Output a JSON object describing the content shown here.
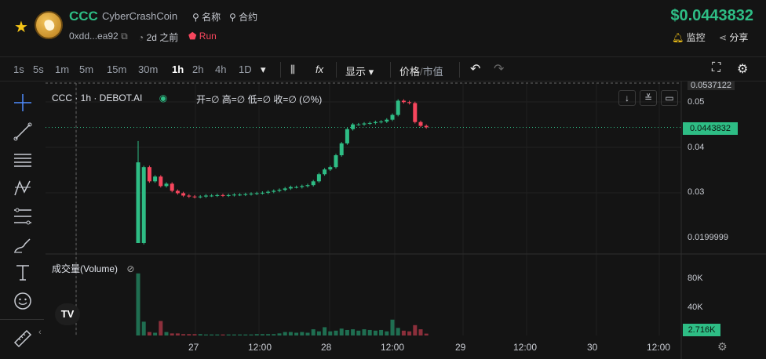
{
  "token": {
    "symbol": "CCC",
    "name": "CyberCrashCoin",
    "name_link": "名称",
    "contract_link": "合约",
    "address": "0xdd...ea92",
    "age": "2d 之前",
    "status": "Run",
    "price": "$0.0443832",
    "watch_label": "监控",
    "share_label": "分享"
  },
  "toolbar": {
    "timeframes": [
      "1s",
      "5s",
      "1m",
      "5m",
      "15m",
      "30m",
      "1h",
      "2h",
      "4h",
      "1D"
    ],
    "active_timeframe": "1h",
    "display_label": "显示",
    "price_label": "价格",
    "mcap_label": "市值",
    "fx_label": "fx"
  },
  "legend": {
    "title": "CCC · 1h · DEBOT.AI",
    "ohlc": "开=∅  高=∅  低=∅  收=∅  (∅%)",
    "volume": "成交量(Volume)"
  },
  "price_axis": {
    "labels": [
      "0.0537122",
      "0.05",
      "0.04",
      "0.03",
      "0.0199999"
    ],
    "current": "0.0443832",
    "volume_labels": [
      "80K",
      "40K"
    ],
    "volume_current": "2.716K"
  },
  "time_axis": [
    "27",
    "12:00",
    "28",
    "12:00",
    "29",
    "12:00",
    "30",
    "12:00"
  ],
  "colors": {
    "up": "#2ebd85",
    "down": "#f6465d",
    "accent": "#2ebd85"
  },
  "chart_data": {
    "type": "candlestick",
    "interval": "1h",
    "candles_close": [
      0.0199999,
      0.036,
      0.033,
      0.034,
      0.032,
      0.0325,
      0.031,
      0.0305,
      0.03,
      0.0298,
      0.0297,
      0.0298,
      0.03,
      0.03,
      0.0301,
      0.03,
      0.0301,
      0.0302,
      0.0302,
      0.0303,
      0.0304,
      0.0305,
      0.0306,
      0.0308,
      0.031,
      0.0312,
      0.0315,
      0.0318,
      0.0318,
      0.032,
      0.0322,
      0.033,
      0.0345,
      0.0355,
      0.036,
      0.0385,
      0.041,
      0.044,
      0.045,
      0.045,
      0.0452,
      0.0453,
      0.0455,
      0.0456,
      0.046,
      0.047,
      0.05,
      0.0497,
      0.0495,
      0.0455,
      0.0447,
      0.0444
    ],
    "volume": [
      90000,
      20000,
      5000,
      4000,
      21000,
      5000,
      3000,
      3000,
      2000,
      2000,
      2000,
      2000,
      1500,
      1500,
      1500,
      1500,
      1500,
      1500,
      1500,
      1500,
      1500,
      2000,
      2000,
      2000,
      2000,
      3000,
      5000,
      5000,
      4000,
      5000,
      4000,
      9000,
      6000,
      12000,
      6000,
      7000,
      10000,
      8000,
      9000,
      7000,
      9000,
      8000,
      7000,
      8000,
      6000,
      23000,
      11000,
      7000,
      6000,
      15000,
      9000,
      2716
    ],
    "ylim": [
      0.0199999,
      0.0537122
    ],
    "volume_ylim": [
      0,
      100000
    ]
  }
}
